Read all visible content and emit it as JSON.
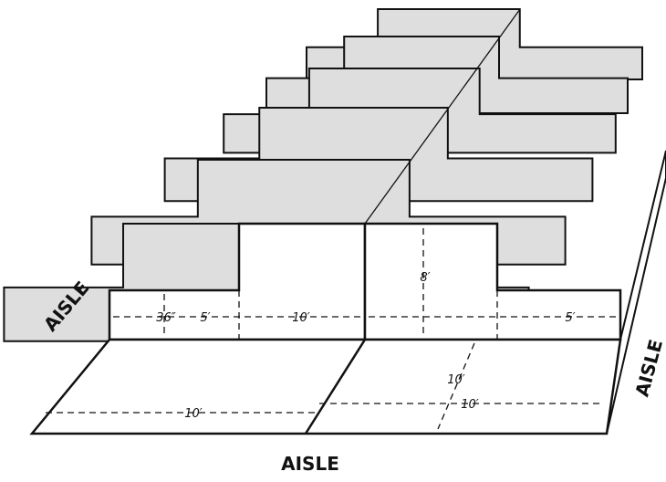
{
  "aisle_labels": {
    "left": "AISLE",
    "right": "AISLE",
    "bottom": "AISLE"
  },
  "dimensions": {
    "rail_height": "36″",
    "low_wall_left": "5′",
    "high_wall_left": "10′",
    "high_wall_height": "8′",
    "low_wall_right": "5′",
    "floor_depth": "10′",
    "floor_width_left": "10′",
    "floor_width_right": "10′"
  }
}
